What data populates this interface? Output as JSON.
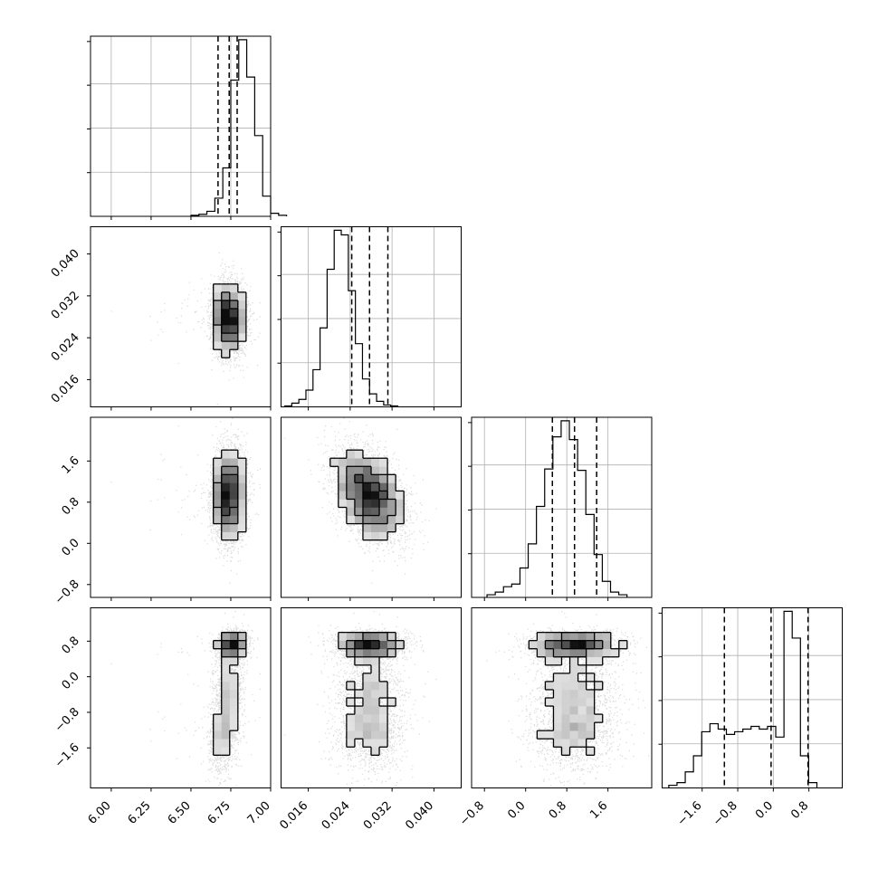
{
  "chart_data": {
    "type": "corner",
    "grid": true,
    "colors": {
      "line": "#000000",
      "grid": "#b0b0b0",
      "scatter": "#555555"
    },
    "params": [
      {
        "range": [
          5.87,
          7.0
        ],
        "ticks": [
          6.0,
          6.25,
          6.5,
          6.75,
          7.0
        ],
        "tick_labels": [
          "6.00",
          "6.25",
          "6.50",
          "6.75",
          "7.00"
        ],
        "quantiles": [
          6.67,
          6.74,
          6.79
        ],
        "hist": {
          "bin_start": 6.5,
          "bin_width": 0.05,
          "counts": [
            1,
            2,
            5,
            18,
            48,
            135,
            175,
            138,
            80,
            20,
            3,
            1
          ]
        },
        "samples": {
          "mean": 6.73,
          "sd": 0.045,
          "tail_sd": 0.3,
          "tail_weight": 0.03
        }
      },
      {
        "range": [
          0.0108,
          0.0452
        ],
        "ticks": [
          0.016,
          0.024,
          0.032,
          0.04
        ],
        "tick_labels": [
          "0.016",
          "0.024",
          "0.032",
          "0.040"
        ],
        "quantiles": [
          0.0243,
          0.0277,
          0.0312
        ],
        "hist": {
          "bin_start": 0.0115,
          "bin_width": 0.00135,
          "counts": [
            1,
            4,
            8,
            18,
            40,
            85,
            148,
            190,
            185,
            125,
            68,
            30,
            14,
            6,
            2,
            1
          ]
        },
        "samples": {
          "mean": 0.0277,
          "sd": 0.0032,
          "tail_sd": 0.0045,
          "tail_weight": 0.05
        }
      },
      {
        "range": [
          -1.05,
          2.45
        ],
        "ticks": [
          -0.8,
          0.0,
          0.8,
          1.6
        ],
        "tick_labels": [
          "−0.8",
          "0.0",
          "0.8",
          "1.6"
        ],
        "quantiles": [
          0.52,
          0.95,
          1.38
        ],
        "hist": {
          "bin_start": -0.75,
          "bin_width": 0.16,
          "counts": [
            2,
            4,
            8,
            10,
            22,
            40,
            68,
            96,
            120,
            132,
            118,
            95,
            62,
            32,
            12,
            4,
            2
          ]
        },
        "samples": {
          "mean": 0.95,
          "sd": 0.42,
          "tail_sd": 0.65,
          "tail_weight": 0.05
        }
      },
      {
        "range": [
          -2.5,
          1.55
        ],
        "ticks": [
          -1.6,
          -0.8,
          0.0,
          0.8
        ],
        "tick_labels": [
          "−1.6",
          "−0.8",
          "0.0",
          "0.8"
        ],
        "quantiles": [
          -1.1,
          -0.05,
          0.78
        ],
        "hist": {
          "bin_start": -2.35,
          "bin_width": 0.185,
          "counts": [
            2,
            4,
            12,
            24,
            42,
            48,
            44,
            40,
            42,
            44,
            46,
            44,
            46,
            38,
            132,
            112,
            24,
            4
          ]
        },
        "samples": {
          "modes": [
            [
              0.72,
              0.15,
              0.45
            ],
            [
              -0.3,
              0.55,
              0.3
            ],
            [
              -1.3,
              0.4,
              0.25
            ]
          ],
          "tail_sd": 0.7,
          "tail_weight": 0.05
        }
      }
    ]
  }
}
